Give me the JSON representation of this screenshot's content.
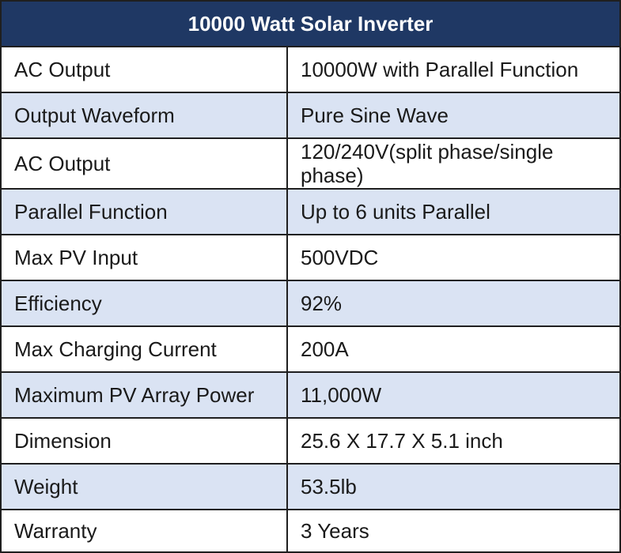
{
  "table": {
    "title": "10000 Watt Solar Inverter",
    "rows": [
      {
        "key": "AC Output",
        "value": "10000W with Parallel Function"
      },
      {
        "key": "Output Waveform",
        "value": "Pure Sine Wave"
      },
      {
        "key": "AC Output",
        "value": "120/240V(split phase/single phase)"
      },
      {
        "key": "Parallel Function",
        "value": "Up to 6 units Parallel"
      },
      {
        "key": "Max PV Input",
        "value": "500VDC"
      },
      {
        "key": "Efficiency",
        "value": "92%"
      },
      {
        "key": "Max Charging Current",
        "value": "200A"
      },
      {
        "key": "Maximum PV Array Power",
        "value": "11,000W"
      },
      {
        "key": "Dimension",
        "value": "25.6 X 17.7 X 5.1 inch"
      },
      {
        "key": "Weight",
        "value": "53.5lb"
      },
      {
        "key": "Warranty",
        "value": "3 Years"
      }
    ]
  },
  "colors": {
    "header_bg": "#1f3864",
    "shaded_row_bg": "#dae3f3",
    "border": "#1f1f1f"
  }
}
